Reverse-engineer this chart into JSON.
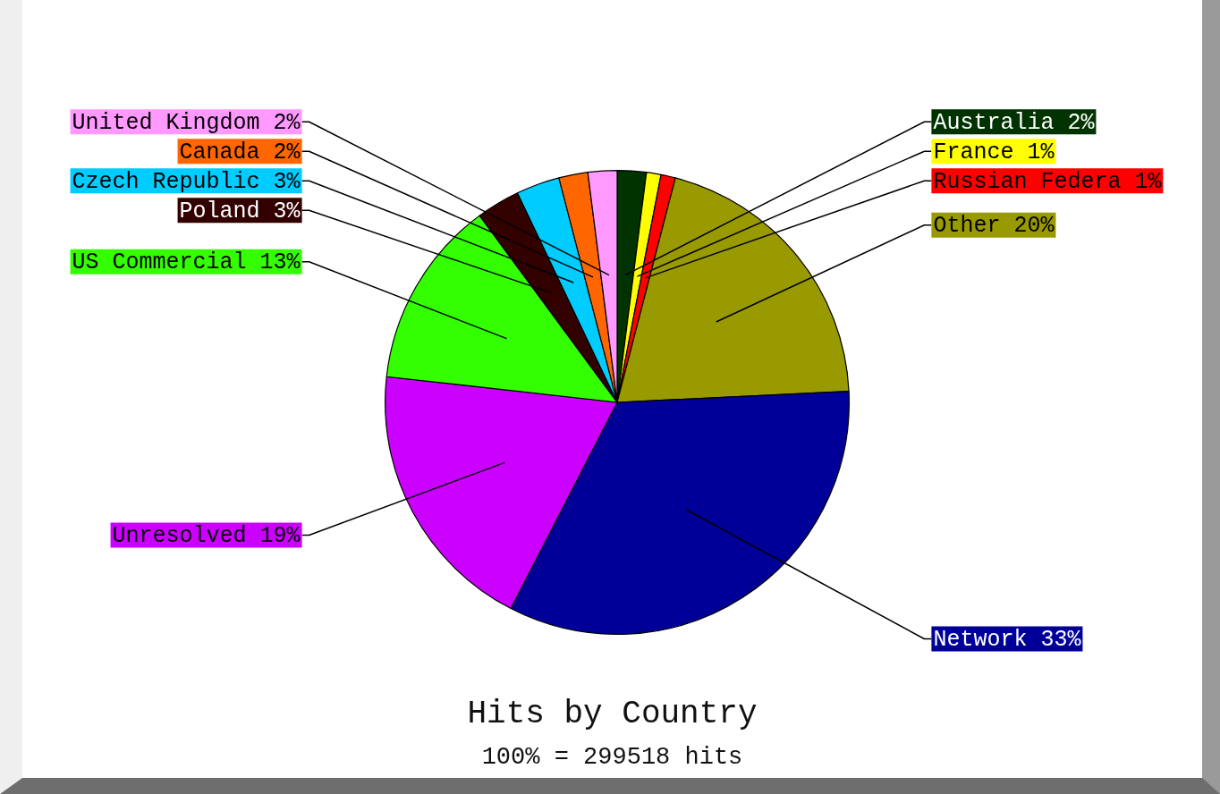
{
  "chart_data": {
    "type": "pie",
    "title": "Hits by Country",
    "subtitle": "100% = 299518 hits",
    "categories": [
      "Australia",
      "France",
      "Russian Federa",
      "Other",
      "Network",
      "Unresolved",
      "US Commercial",
      "Poland",
      "Czech Republic",
      "Canada",
      "United Kingdom"
    ],
    "values": [
      2,
      1,
      1,
      20,
      33,
      19,
      13,
      3,
      3,
      2,
      2
    ],
    "value_labels": [
      "2%",
      "1%",
      "1%",
      "20%",
      "33%",
      "19%",
      "13%",
      "3%",
      "3%",
      "2%",
      "2%"
    ],
    "colors": [
      "#003300",
      "#ffff00",
      "#ff0000",
      "#999900",
      "#000099",
      "#cc00ff",
      "#33ff00",
      "#330000",
      "#00ccff",
      "#ff6600",
      "#ff99ff"
    ]
  }
}
